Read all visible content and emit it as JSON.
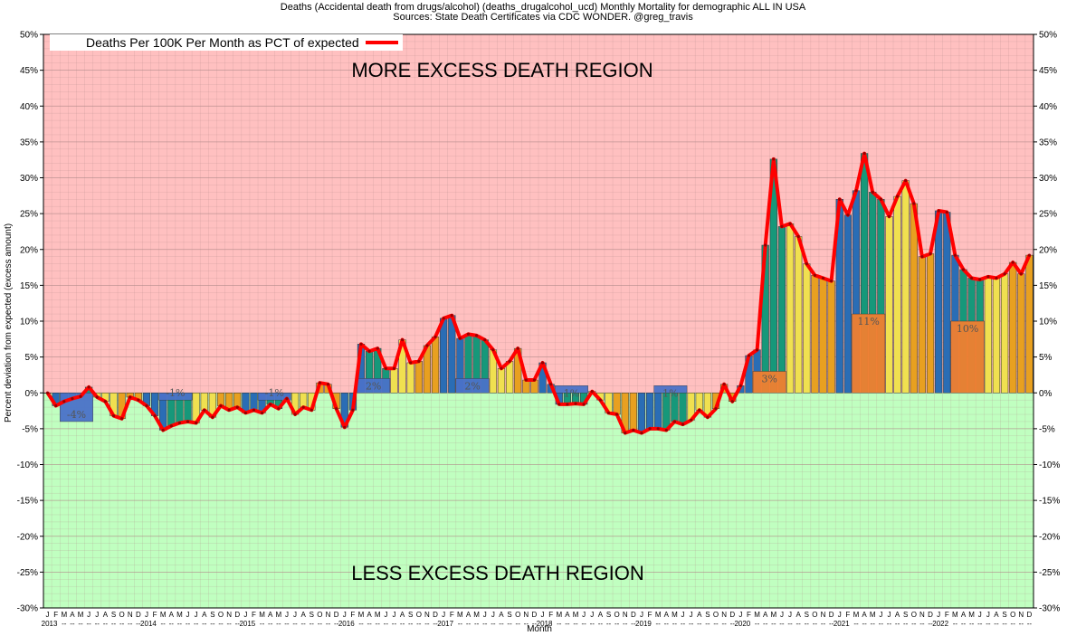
{
  "header": {
    "title_line1": "Deaths (Accidental death from drugs/alcohol) (deaths_drugalcohol_ucd) Monthly Mortality for demographic ALL IN USA",
    "title_line2": "Sources: State Death Certificates via CDC WONDER.  @greg_travis"
  },
  "colors": {
    "excess_bg": "#ffc0c0",
    "less_bg": "#c0ffc0",
    "line": "#ff0000",
    "grid": "#b08a8a",
    "bar_blue": "#2a6db5",
    "bar_green": "#16987a",
    "bar_yellow": "#f0e050",
    "bar_orange": "#e8a020",
    "year_avg_pos": "#f08030",
    "year_avg_neg": "#4a72c8"
  },
  "chart_data": {
    "type": "bar",
    "title": "Deaths (Accidental death from drugs/alcohol) (deaths_drugalcohol_ucd) Monthly Mortality for demographic ALL IN USA",
    "subtitle": "Sources: State Death Certificates via CDC WONDER.  @greg_travis",
    "xlabel": "Month",
    "ylabel": "Percent deviation from expected (excess amount)",
    "ylim": [
      -30,
      50
    ],
    "y_ticks": [
      "50%",
      "45%",
      "40%",
      "35%",
      "30%",
      "25%",
      "20%",
      "15%",
      "10%",
      "5%",
      "0%",
      "-5%",
      "-10%",
      "-15%",
      "-20%",
      "-25%",
      "-30%"
    ],
    "grid": true,
    "legend_position": "top-left",
    "legend": "Deaths Per 100K Per Month as PCT of expected",
    "regions": {
      "upper": "MORE EXCESS DEATH REGION",
      "lower": "LESS EXCESS DEATH REGION"
    },
    "month_letters": [
      "J",
      "F",
      "M",
      "A",
      "M",
      "J",
      "J",
      "A",
      "S",
      "O",
      "N",
      "D"
    ],
    "years": [
      "2013",
      "2014",
      "2015",
      "2016",
      "2017",
      "2018",
      "2019",
      "2020",
      "2021",
      "2022"
    ],
    "values": [
      0,
      -1.8,
      -1.2,
      -0.8,
      -0.5,
      0.8,
      -0.6,
      -1.2,
      -3.2,
      -3.6,
      -0.6,
      -1.0,
      -1.8,
      -3.2,
      -5.2,
      -4.6,
      -4.2,
      -4.0,
      -4.2,
      -2.4,
      -3.4,
      -1.8,
      -2.4,
      -2.0,
      -2.8,
      -2.4,
      -2.8,
      -1.6,
      -2.2,
      -0.8,
      -3.0,
      -2.0,
      -2.4,
      1.4,
      1.2,
      -2.2,
      -4.8,
      -2.4,
      6.8,
      5.8,
      6.2,
      3.4,
      3.4,
      7.4,
      4.2,
      4.4,
      6.6,
      7.8,
      10.4,
      10.8,
      7.6,
      8.2,
      8.0,
      7.4,
      6.0,
      3.4,
      4.4,
      6.2,
      1.8,
      1.8,
      4.2,
      1.2,
      -1.6,
      -1.6,
      -1.5,
      -1.6,
      0.2,
      -1.0,
      -2.8,
      -3.0,
      -5.6,
      -5.2,
      -5.6,
      -5.0,
      -5.0,
      -5.2,
      -4.0,
      -4.4,
      -3.8,
      -2.4,
      -3.4,
      -2.2,
      1.2,
      -1.2,
      1.0,
      5.2,
      6.0,
      20.6,
      32.6,
      23.2,
      23.6,
      21.8,
      18.0,
      16.4,
      16.0,
      15.6,
      27.0,
      24.8,
      28.2,
      33.4,
      28.0,
      27.0,
      24.6,
      27.4,
      29.6,
      26.4,
      19.0,
      19.4,
      25.4,
      25.2,
      19.2,
      17.2,
      16.0,
      15.8,
      16.2,
      16.0,
      16.6,
      18.2,
      16.6,
      19.2
    ],
    "year_averages": [
      {
        "year": "2013",
        "label": "-4%",
        "value": -4
      },
      {
        "year": "2014",
        "label": "-1%",
        "value": -1
      },
      {
        "year": "2015",
        "label": "-1%",
        "value": -1
      },
      {
        "year": "2016",
        "label": "2%",
        "value": 2
      },
      {
        "year": "2017",
        "label": "2%",
        "value": 2
      },
      {
        "year": "2018",
        "label": "1%",
        "value": 1
      },
      {
        "year": "2019",
        "label": "1%",
        "value": 1
      },
      {
        "year": "2020",
        "label": "3%",
        "value": 3
      },
      {
        "year": "2021",
        "label": "11%",
        "value": 11
      },
      {
        "year": "2022",
        "label": "10%",
        "value": 10
      }
    ]
  }
}
